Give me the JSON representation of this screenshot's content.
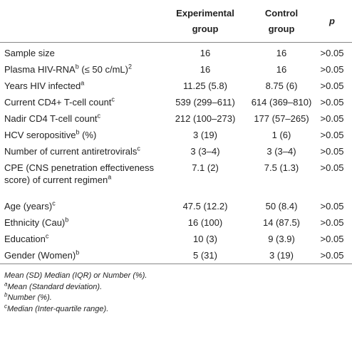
{
  "header": {
    "col_label": "",
    "col_experimental": [
      "Experimental",
      "group"
    ],
    "col_control": [
      "Control",
      "group"
    ],
    "col_p": "p"
  },
  "rows": [
    {
      "label": "Sample size",
      "sup": "",
      "label_suffix": "",
      "exp": "16",
      "ctl": "16",
      "p": ">0.05"
    },
    {
      "label": "Plasma HIV-RNA",
      "sup": "b",
      "label_suffix": " (≤ 50 c/mL)",
      "sup2": "2",
      "exp": "16",
      "ctl": "16",
      "p": ">0.05"
    },
    {
      "label": "Years HIV infected",
      "sup": "a",
      "label_suffix": "",
      "exp": "11.25 (5.8)",
      "ctl": "8.75 (6)",
      "p": ">0.05"
    },
    {
      "label": "Current CD4+ T-cell count",
      "sup": "c",
      "label_suffix": "",
      "exp": "539 (299–611)",
      "ctl": "614 (369–810)",
      "p": ">0.05"
    },
    {
      "label": "Nadir CD4 T-cell count",
      "sup": "c",
      "label_suffix": "",
      "exp": "212 (100–273)",
      "ctl": "177 (57–265)",
      "p": ">0.05"
    },
    {
      "label": "HCV seropositive",
      "sup": "b",
      "label_suffix": " (%)",
      "exp": "3 (19)",
      "ctl": "1 (6)",
      "p": ">0.05"
    },
    {
      "label": "Number of current antiretrovirals",
      "sup": "c",
      "label_suffix": "",
      "exp": "3 (3–4)",
      "ctl": "3 (3–4)",
      "p": ">0.05"
    },
    {
      "label": "CPE (CNS penetration effectiveness score) of current regimen",
      "sup": "a",
      "label_suffix": "",
      "exp": "7.1 (2)",
      "ctl": "7.5 (1.3)",
      "p": ">0.05"
    },
    {
      "label": "Age (years)",
      "sup": "c",
      "label_suffix": "",
      "exp": "47.5 (12.2)",
      "ctl": "50 (8.4)",
      "p": ">0.05"
    },
    {
      "label": "Ethnicity (Cau)",
      "sup": "b",
      "label_suffix": "",
      "exp": "16 (100)",
      "ctl": "14 (87.5)",
      "p": ">0.05"
    },
    {
      "label": "Education",
      "sup": "c",
      "label_suffix": "",
      "exp": "10 (3)",
      "ctl": "9 (3.9)",
      "p": ">0.05"
    },
    {
      "label": "Gender (Women)",
      "sup": "b",
      "label_suffix": "",
      "exp": "5 (31)",
      "ctl": "3 (19)",
      "p": ">0.05"
    }
  ],
  "notes": {
    "main": "Mean (SD) Median (IQR) or Number (%).",
    "a_mark": "a",
    "a_text": "Mean (Standard deviation).",
    "b_mark": "b",
    "b_text": "Number (%).",
    "c_mark": "c",
    "c_text": "Median (Inter-quartile range)."
  }
}
